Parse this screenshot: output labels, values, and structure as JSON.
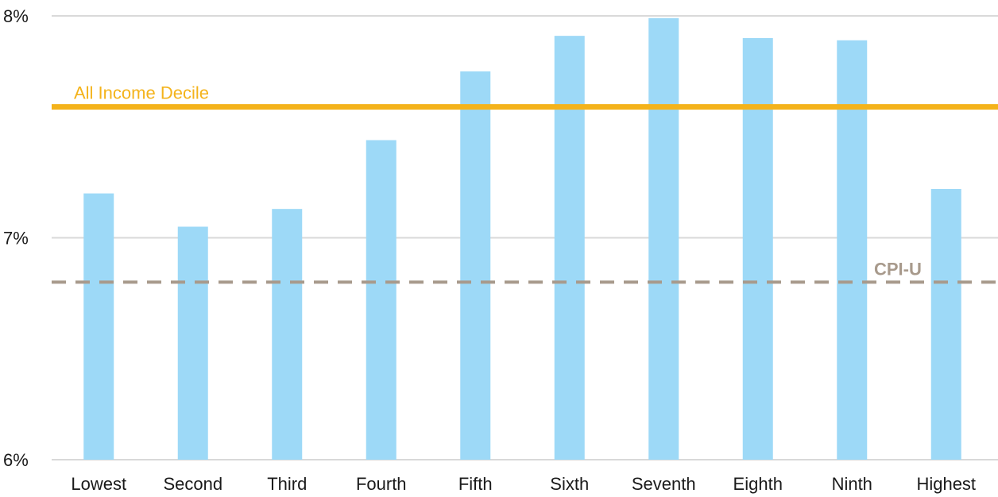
{
  "chart_data": {
    "type": "bar",
    "categories": [
      "Lowest",
      "Second",
      "Third",
      "Fourth",
      "Fifth",
      "Sixth",
      "Seventh",
      "Eighth",
      "Ninth",
      "Highest"
    ],
    "values": [
      7.2,
      7.05,
      7.13,
      7.44,
      7.75,
      7.91,
      7.99,
      7.9,
      7.89,
      7.22
    ],
    "ylim": [
      6,
      8
    ],
    "yticks": [
      6,
      7,
      8
    ],
    "ytick_labels": [
      "6%",
      "7%",
      "8%"
    ],
    "grid": true,
    "bar_color": "#9dd9f7",
    "reference_lines": [
      {
        "label": "All Income Decile",
        "value": 7.59,
        "color": "#f4b31b",
        "style": "solid"
      },
      {
        "label": "CPI-U",
        "value": 6.8,
        "color": "#a89a8c",
        "style": "dashed"
      }
    ]
  }
}
